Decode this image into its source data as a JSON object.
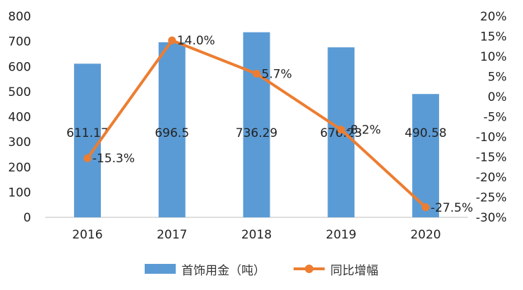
{
  "chart_data": {
    "type": "bar",
    "categories": [
      "2016",
      "2017",
      "2018",
      "2019",
      "2020"
    ],
    "series": [
      {
        "name": "首饰用金（吨）",
        "type": "bar",
        "axis": "left",
        "color": "#5b9bd5",
        "values": [
          611.17,
          696.5,
          736.29,
          676.23,
          490.58
        ],
        "labels": [
          "611.17",
          "696.5",
          "736.29",
          "676.23",
          "490.58"
        ]
      },
      {
        "name": "同比增幅",
        "type": "line",
        "axis": "right",
        "color": "#ed7d31",
        "values": [
          -15.3,
          14.0,
          5.7,
          -8.2,
          -27.5
        ],
        "labels": [
          "-15.3%",
          "14.0%",
          "5.7%",
          "-8.2%",
          "-27.5%"
        ]
      }
    ],
    "y_left": {
      "min": 0,
      "max": 800,
      "step": 100,
      "ticks": [
        "0",
        "100",
        "200",
        "300",
        "400",
        "500",
        "600",
        "700",
        "800"
      ]
    },
    "y_right": {
      "min": -30,
      "max": 20,
      "step": 5,
      "ticks": [
        "-30%",
        "-25%",
        "-20%",
        "-15%",
        "-10%",
        "-5%",
        "0%",
        "5%",
        "10%",
        "15%",
        "20%"
      ]
    },
    "grid": false,
    "legend_position": "bottom"
  }
}
